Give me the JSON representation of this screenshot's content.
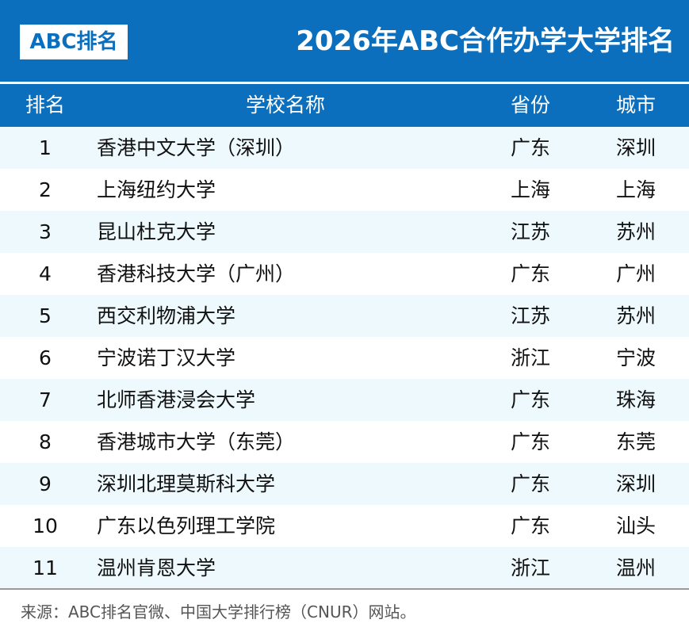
{
  "header": {
    "logo": "ABC排名",
    "title": "2026年ABC合作办学大学排名"
  },
  "table": {
    "columns": [
      "排名",
      "学校名称",
      "省份",
      "城市"
    ],
    "rows": [
      [
        1,
        "香港中文大学（深圳）",
        "广东",
        "深圳"
      ],
      [
        2,
        "上海纽约大学",
        "上海",
        "上海"
      ],
      [
        3,
        "昆山杜克大学",
        "江苏",
        "苏州"
      ],
      [
        4,
        "香港科技大学（广州）",
        "广东",
        "广州"
      ],
      [
        5,
        "西交利物浦大学",
        "江苏",
        "苏州"
      ],
      [
        6,
        "宁波诺丁汉大学",
        "浙江",
        "宁波"
      ],
      [
        7,
        "北师香港浸会大学",
        "广东",
        "珠海"
      ],
      [
        8,
        "香港城市大学（东莞）",
        "广东",
        "东莞"
      ],
      [
        9,
        "深圳北理莫斯科大学",
        "广东",
        "深圳"
      ],
      [
        10,
        "广东以色列理工学院",
        "广东",
        "汕头"
      ],
      [
        11,
        "温州肯恩大学",
        "浙江",
        "温州"
      ]
    ]
  },
  "footer": {
    "source": "来源：ABC排名官微、中国大学排行榜（CNUR）网站。"
  }
}
